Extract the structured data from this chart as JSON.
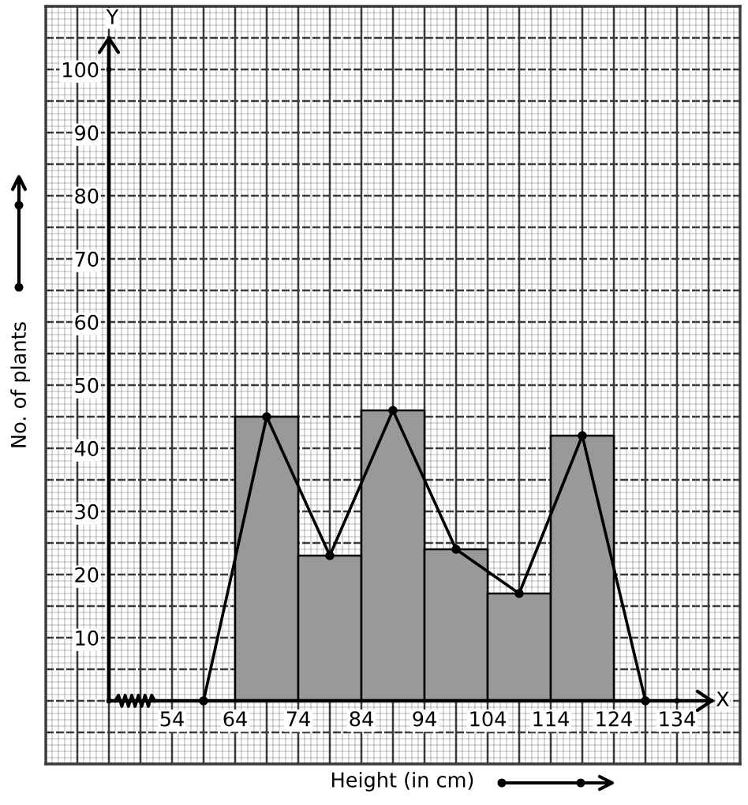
{
  "chart_data": {
    "type": "histogram",
    "xlabel": "Height (in cm)",
    "ylabel": "No. of plants",
    "series": [
      {
        "bins": [
          64,
          74,
          84,
          94,
          104,
          114,
          124
        ],
        "values": [
          45,
          23,
          46,
          24,
          17,
          42
        ],
        "color": "#999999"
      },
      {
        "type": "line",
        "x": [
          59,
          69,
          79,
          89,
          99,
          109,
          119,
          129
        ],
        "values": [
          0,
          45,
          23,
          46,
          24,
          17,
          42,
          0
        ],
        "color": "#000000",
        "marker": "circle",
        "line_style": "solid"
      }
    ],
    "xlim": [
      34,
      144
    ],
    "ylim": [
      -10,
      110
    ],
    "xticks": [
      54,
      64,
      74,
      84,
      94,
      104,
      114,
      124,
      134
    ],
    "yticks": [
      10,
      20,
      30,
      40,
      50,
      60,
      70,
      80,
      90,
      100
    ],
    "grid": true,
    "annotations": [
      "X",
      "Y"
    ]
  }
}
